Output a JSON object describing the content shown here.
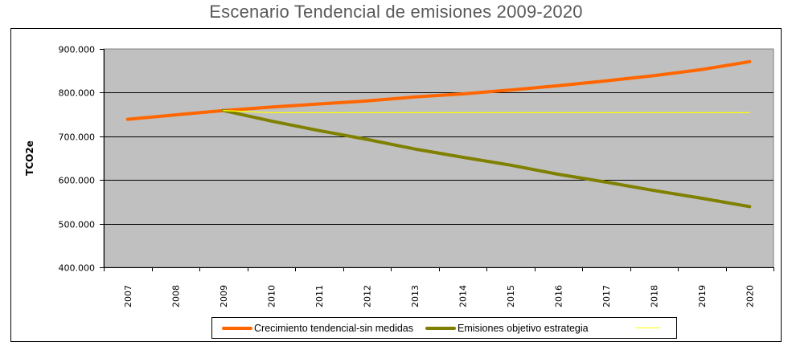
{
  "chart_data": {
    "type": "line",
    "title": "Escenario Tendencial de emisiones 2009-2020",
    "xlabel": "",
    "ylabel": "TCO2e",
    "categories": [
      "2007",
      "2008",
      "2009",
      "2010",
      "2011",
      "2012",
      "2013",
      "2014",
      "2015",
      "2016",
      "2017",
      "2018",
      "2019",
      "2020"
    ],
    "ylim": [
      400000,
      900000
    ],
    "yticks": [
      400000,
      500000,
      600000,
      700000,
      800000,
      900000
    ],
    "ytick_labels": [
      "400.000",
      "500.000",
      "600.000",
      "700.000",
      "800.000",
      "900.000"
    ],
    "grid": true,
    "legend_position": "bottom",
    "series": [
      {
        "name": "Crecimiento tendencial-sin medidas",
        "color": "#ff6600",
        "values": [
          739000,
          749000,
          759000,
          767000,
          774000,
          781000,
          790000,
          797000,
          806000,
          816000,
          827000,
          839000,
          853000,
          871000
        ]
      },
      {
        "name": "Emisiones objetivo estrategia",
        "color": "#808000",
        "values": [
          null,
          null,
          759000,
          735000,
          713000,
          693000,
          671000,
          652000,
          634000,
          613000,
          595000,
          576000,
          558000,
          539000
        ]
      },
      {
        "name": "",
        "color": "#ffff00",
        "values": [
          null,
          null,
          759000,
          754000,
          754000,
          754000,
          754000,
          754000,
          754000,
          754000,
          754000,
          754000,
          754000,
          754000
        ]
      }
    ]
  },
  "colors": {
    "plot_background": "#c0c0c0",
    "gridline": "#000000"
  }
}
